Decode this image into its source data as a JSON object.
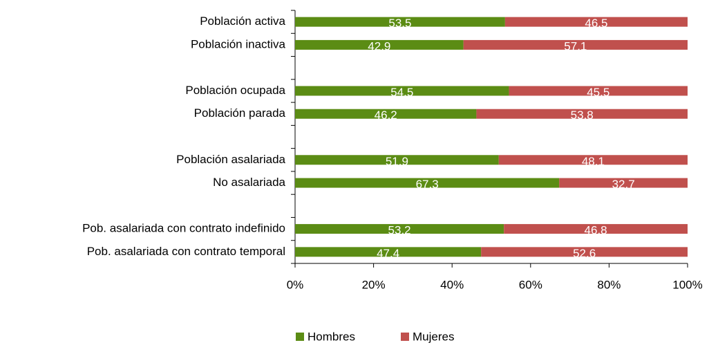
{
  "chart_data": {
    "type": "stacked_barh",
    "categories": [
      "Población activa",
      "Población inactiva",
      null,
      "Población ocupada",
      "Población parada",
      null,
      "Población asalariada",
      "No asalariada",
      null,
      "Pob. asalariada con contrato indefinido",
      "Pob. asalariada con contrato temporal"
    ],
    "series": [
      {
        "name": "Hombres",
        "color": "#5b8c14",
        "values": [
          53.5,
          42.9,
          null,
          54.5,
          46.2,
          null,
          51.9,
          67.3,
          null,
          53.2,
          47.4
        ]
      },
      {
        "name": "Mujeres",
        "color": "#c0504d",
        "values": [
          46.5,
          57.1,
          null,
          45.5,
          53.8,
          null,
          48.1,
          32.7,
          null,
          46.8,
          52.6
        ]
      }
    ],
    "xlim": [
      0,
      100
    ],
    "xticks": [
      {
        "value": 0,
        "label": "0%"
      },
      {
        "value": 20,
        "label": "20%"
      },
      {
        "value": 40,
        "label": "40%"
      },
      {
        "value": 60,
        "label": "60%"
      },
      {
        "value": 80,
        "label": "80%"
      },
      {
        "value": 100,
        "label": "100%"
      }
    ],
    "legend": "bottom"
  }
}
